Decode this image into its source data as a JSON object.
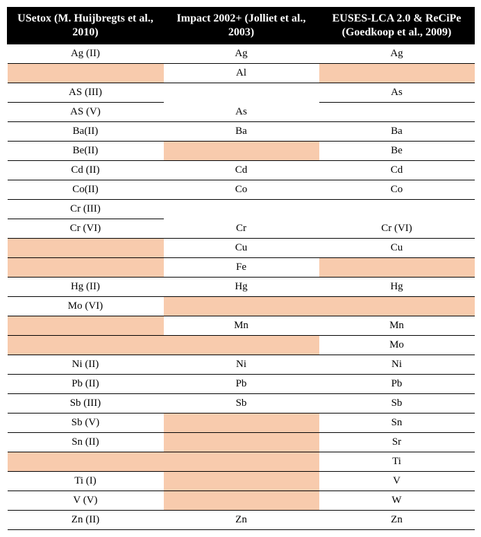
{
  "headers": {
    "col1": "USetox (M. Huijbregts et al., 2010)",
    "col2": "Impact 2002+ (Jolliet et al., 2003)",
    "col3": "EUSES-LCA 2.0 & ReCiPe (Goedkoop et al., 2009)"
  },
  "cells": {
    "r0c0": "Ag (II)",
    "r0c1": "Ag",
    "r0c2": "Ag",
    "r1c0": "",
    "r1c1": "Al",
    "r1c2": "",
    "r2c0": "AS (III)",
    "r2c1": "",
    "r2c2": "As",
    "r3c0": "AS (V)",
    "r3c1": "As",
    "r3c2": "",
    "r4c0": "Ba(II)",
    "r4c1": "Ba",
    "r4c2": "Ba",
    "r5c0": "Be(II)",
    "r5c1": "",
    "r5c2": "Be",
    "r6c0": "Cd (II)",
    "r6c1": "Cd",
    "r6c2": "Cd",
    "r7c0": "Co(II)",
    "r7c1": "Co",
    "r7c2": "Co",
    "r8c0": "Cr (III)",
    "r8c1": "",
    "r8c2": "",
    "r9c0": "Cr (VI)",
    "r9c1": "Cr",
    "r9c2": "Cr (VI)",
    "r10c0": "",
    "r10c1": "Cu",
    "r10c2": "Cu",
    "r11c0": "",
    "r11c1": "Fe",
    "r11c2": "",
    "r12c0": "Hg (II)",
    "r12c1": "Hg",
    "r12c2": "Hg",
    "r13c0": "Mo (VI)",
    "r13c1": "",
    "r13c2": "",
    "r14c0": "",
    "r14c1": "Mn",
    "r14c2": "Mn",
    "r15c0": "",
    "r15c1": "",
    "r15c2": "Mo",
    "r16c0": "Ni (II)",
    "r16c1": "Ni",
    "r16c2": "Ni",
    "r17c0": "Pb (II)",
    "r17c1": "Pb",
    "r17c2": "Pb",
    "r18c0": "Sb (III)",
    "r18c1": "Sb",
    "r18c2": "Sb",
    "r19c0": "Sb (V)",
    "r19c1": "",
    "r19c2": "Sn",
    "r20c0": "Sn (II)",
    "r20c1": "",
    "r20c2": "Sr",
    "r21c0": "",
    "r21c1": "",
    "r21c2": "Ti",
    "r22c0": "Ti (I)",
    "r22c1": "",
    "r22c2": "V",
    "r23c0": "V (V)",
    "r23c1": "",
    "r23c2": "W",
    "r24c0": "Zn (II)",
    "r24c1": "Zn",
    "r24c2": "Zn"
  },
  "highlight_color": "#f8cbad",
  "header_bg": "#000000",
  "header_fg": "#ffffff"
}
